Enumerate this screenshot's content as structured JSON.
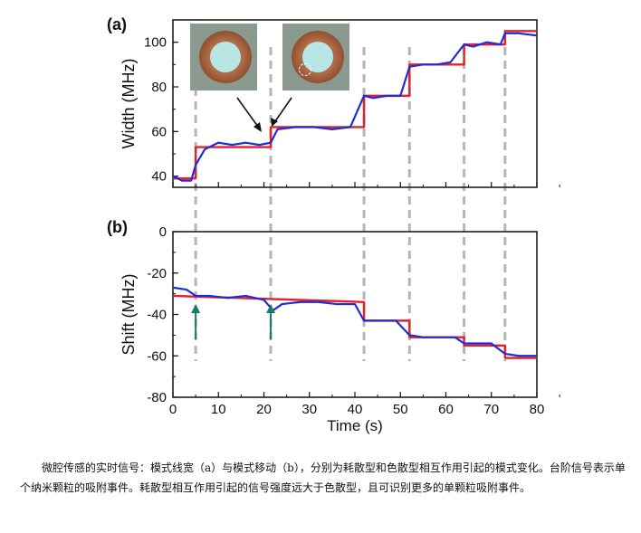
{
  "chart_data": [
    {
      "panel_label": "(a)",
      "type": "line",
      "ylabel": "Width (MHz)",
      "ylim": [
        35,
        110
      ],
      "yticks": [
        "40",
        "60",
        "80",
        "100"
      ],
      "xlim": [
        0,
        80
      ],
      "series": [
        {
          "color": "#e8202a",
          "role": "step fit",
          "x": [
            0,
            5,
            5,
            21.5,
            21.5,
            42,
            42,
            52,
            52,
            64,
            64,
            73,
            73,
            80
          ],
          "y": [
            39,
            39,
            53,
            53,
            62,
            62,
            76,
            76,
            90,
            90,
            99,
            99,
            105,
            105
          ]
        },
        {
          "color": "#1f2cd9",
          "role": "measured signal",
          "x": [
            0,
            2,
            4,
            5,
            7,
            10,
            13,
            16,
            19,
            21.5,
            23,
            27,
            31,
            35,
            39,
            42,
            44,
            47,
            50,
            52,
            55,
            58,
            61,
            64,
            66,
            69,
            72,
            73,
            76,
            80
          ],
          "y": [
            40,
            38,
            38,
            45,
            52,
            55,
            54,
            55,
            54,
            55,
            61,
            62,
            62,
            61,
            62,
            76,
            75,
            76,
            76,
            89,
            90,
            90,
            91,
            99,
            98,
            100,
            99,
            104,
            104,
            103
          ]
        }
      ],
      "event_lines_x": [
        5,
        21.5,
        42,
        52,
        64,
        73
      ]
    },
    {
      "panel_label": "(b)",
      "type": "line",
      "xlabel": "Time (s)",
      "ylabel": "Shift (MHz)",
      "xlim": [
        0,
        80
      ],
      "ylim": [
        -80,
        0
      ],
      "xticks": [
        "0",
        "10",
        "20",
        "30",
        "40",
        "50",
        "60",
        "70",
        "80"
      ],
      "yticks": [
        "0",
        "-20",
        "-40",
        "-60",
        "-80"
      ],
      "series": [
        {
          "color": "#e8202a",
          "role": "step fit",
          "x": [
            0,
            42,
            42,
            52,
            52,
            64,
            64,
            73,
            73,
            80
          ],
          "y": [
            -31,
            -34,
            -43,
            -43,
            -51,
            -51,
            -55,
            -55,
            -61,
            -61
          ]
        },
        {
          "color": "#1f2cd9",
          "role": "measured signal",
          "x": [
            0,
            3,
            5,
            8,
            12,
            16,
            20,
            22,
            24,
            28,
            32,
            36,
            40,
            42,
            45,
            49,
            52,
            55,
            59,
            62,
            64,
            67,
            70,
            73,
            76,
            80
          ],
          "y": [
            -27,
            -28,
            -31,
            -31,
            -32,
            -31,
            -33,
            -38,
            -35,
            -34,
            -34,
            -35,
            -35,
            -43,
            -43,
            -43,
            -50,
            -51,
            -51,
            -51,
            -54,
            -54,
            -54,
            -59,
            -60,
            -60
          ]
        }
      ],
      "arrows_x": [
        5,
        21.5
      ],
      "arrow_color": "#1a7a6a"
    }
  ],
  "caption": "微腔传感的实时信号：模式线宽（a）与模式移动（b），分别为耗散型和色散型相互作用引起的模式变化。台阶信号表示单个纳米颗粒的吸附事件。耗散型相互作用引起的信号强度远大于色散型，且可识别更多的单颗粒吸附事件。"
}
